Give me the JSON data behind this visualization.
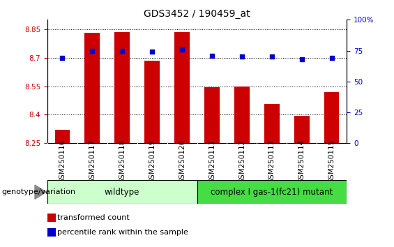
{
  "title": "GDS3452 / 190459_at",
  "categories": [
    "GSM250116",
    "GSM250117",
    "GSM250118",
    "GSM250119",
    "GSM250120",
    "GSM250111",
    "GSM250112",
    "GSM250113",
    "GSM250114",
    "GSM250115"
  ],
  "bar_values": [
    8.32,
    8.83,
    8.835,
    8.685,
    8.835,
    8.545,
    8.55,
    8.455,
    8.395,
    8.52
  ],
  "percentile_values": [
    69,
    75,
    75,
    74,
    76,
    71,
    70,
    70,
    68,
    69
  ],
  "ylim_left": [
    8.25,
    8.9
  ],
  "ylim_right": [
    0,
    100
  ],
  "yticks_left": [
    8.25,
    8.4,
    8.55,
    8.7,
    8.85
  ],
  "yticks_right": [
    0,
    25,
    50,
    75,
    100
  ],
  "ytick_labels_right": [
    "0",
    "25",
    "50",
    "75",
    "100%"
  ],
  "bar_color": "#cc0000",
  "scatter_color": "#0000cc",
  "grid_color": "#000000",
  "background_color": "#ffffff",
  "plot_bg_color": "#ffffff",
  "xtick_bg_color": "#c8c8c8",
  "wildtype_color": "#ccffcc",
  "mutant_color": "#44dd44",
  "wildtype_label": "wildtype",
  "mutant_label": "complex I gas-1(fc21) mutant",
  "wildtype_indices": [
    0,
    1,
    2,
    3,
    4
  ],
  "mutant_indices": [
    5,
    6,
    7,
    8,
    9
  ],
  "legend_bar_label": "transformed count",
  "legend_scatter_label": "percentile rank within the sample",
  "genotype_label": "genotype/variation",
  "bar_width": 0.5,
  "title_fontsize": 10,
  "tick_fontsize": 7.5,
  "label_fontsize": 8,
  "annotation_fontsize": 8.5
}
